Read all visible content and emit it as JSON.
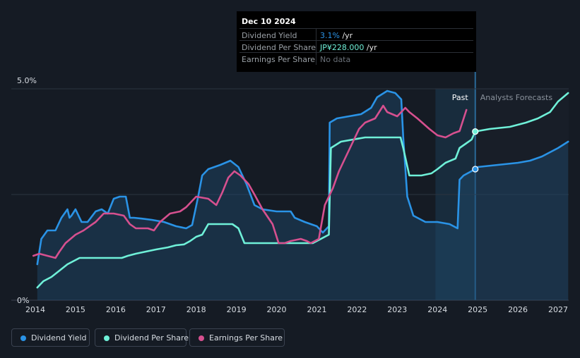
{
  "tooltip": {
    "date": "Dec 10 2024",
    "rows": [
      {
        "label": "Dividend Yield",
        "value": "3.1%",
        "unit": " /yr"
      },
      {
        "label": "Dividend Per Share",
        "value": "JP¥228.000",
        "unit": " /yr"
      },
      {
        "label": "Earnings Per Share",
        "value": "No data",
        "unit": ""
      }
    ]
  },
  "legend": [
    {
      "label": "Dividend Yield",
      "color": "#2a93e6"
    },
    {
      "label": "Dividend Per Share",
      "color": "#6ff0d8"
    },
    {
      "label": "Earnings Per Share",
      "color": "#d6508f"
    }
  ],
  "chart_data": {
    "type": "line",
    "x_ticks": [
      "2014",
      "2015",
      "2016",
      "2017",
      "2018",
      "2019",
      "2020",
      "2021",
      "2022",
      "2023",
      "2024",
      "2025",
      "2026",
      "2027"
    ],
    "y_ticks": [
      "0%",
      "5.0%"
    ],
    "ylim": [
      0,
      5.0
    ],
    "past_label": "Past",
    "forecast_label": "Analysts Forecasts",
    "highlight_date": 2024.94,
    "series": [
      {
        "name": "Dividend Yield",
        "color": "#2a93e6",
        "x": [
          2014.05,
          2014.15,
          2014.3,
          2014.5,
          2014.65,
          2014.8,
          2014.85,
          2014.9,
          2015.0,
          2015.1,
          2015.15,
          2015.3,
          2015.5,
          2015.65,
          2015.8,
          2015.95,
          2016.1,
          2016.25,
          2016.35,
          2016.45,
          2016.65,
          2016.9,
          2017.2,
          2017.5,
          2017.75,
          2017.9,
          2018.05,
          2018.15,
          2018.3,
          2018.6,
          2018.85,
          2019.05,
          2019.25,
          2019.45,
          2019.65,
          2020.0,
          2020.35,
          2020.45,
          2020.7,
          2021.0,
          2021.15,
          2021.3,
          2021.32,
          2021.5,
          2021.8,
          2022.1,
          2022.35,
          2022.5,
          2022.75,
          2022.95,
          2023.1,
          2023.15,
          2023.25,
          2023.4,
          2023.7,
          2024.0,
          2024.3,
          2024.5,
          2024.55,
          2024.65,
          2024.94,
          2025.0,
          2025.5,
          2026.0,
          2026.3,
          2026.6,
          2027.0,
          2027.25
        ],
        "y": [
          0.85,
          1.45,
          1.65,
          1.65,
          1.95,
          2.15,
          1.95,
          2.0,
          2.15,
          1.95,
          1.85,
          1.85,
          2.1,
          2.15,
          2.05,
          2.4,
          2.45,
          2.45,
          1.95,
          1.95,
          1.93,
          1.9,
          1.85,
          1.75,
          1.7,
          1.78,
          2.45,
          2.95,
          3.1,
          3.2,
          3.3,
          3.15,
          2.75,
          2.25,
          2.15,
          2.1,
          2.1,
          1.95,
          1.85,
          1.75,
          1.6,
          1.75,
          4.2,
          4.3,
          4.35,
          4.4,
          4.55,
          4.8,
          4.95,
          4.9,
          4.75,
          3.85,
          2.45,
          2.0,
          1.85,
          1.85,
          1.8,
          1.7,
          2.85,
          2.95,
          3.1,
          3.15,
          3.2,
          3.25,
          3.3,
          3.4,
          3.6,
          3.75
        ]
      },
      {
        "name": "Dividend Per Share",
        "color": "#6ff0d8",
        "x": [
          2014.05,
          2014.2,
          2014.4,
          2014.6,
          2014.8,
          2015.0,
          2015.1,
          2015.5,
          2016.0,
          2016.15,
          2016.3,
          2016.5,
          2016.75,
          2017.0,
          2017.3,
          2017.5,
          2017.7,
          2017.85,
          2018.0,
          2018.15,
          2018.3,
          2018.6,
          2018.9,
          2019.05,
          2019.2,
          2019.35,
          2020.0,
          2020.5,
          2020.9,
          2021.1,
          2021.2,
          2021.3,
          2021.35,
          2021.6,
          2021.9,
          2022.2,
          2022.6,
          2022.9,
          2023.0,
          2023.08,
          2023.15,
          2023.3,
          2023.6,
          2023.85,
          2024.0,
          2024.2,
          2024.45,
          2024.55,
          2024.7,
          2024.85,
          2024.94,
          2025.3,
          2025.8,
          2026.2,
          2026.5,
          2026.8,
          2027.0,
          2027.25
        ],
        "y": [
          0.3,
          0.45,
          0.55,
          0.7,
          0.85,
          0.95,
          1.0,
          1.0,
          1.0,
          1.0,
          1.05,
          1.1,
          1.15,
          1.2,
          1.25,
          1.3,
          1.32,
          1.4,
          1.5,
          1.55,
          1.8,
          1.8,
          1.8,
          1.7,
          1.35,
          1.35,
          1.35,
          1.35,
          1.35,
          1.45,
          1.5,
          1.55,
          3.6,
          3.75,
          3.8,
          3.85,
          3.85,
          3.85,
          3.85,
          3.85,
          3.6,
          2.95,
          2.95,
          3.0,
          3.1,
          3.25,
          3.35,
          3.6,
          3.7,
          3.8,
          3.99,
          4.05,
          4.1,
          4.2,
          4.3,
          4.45,
          4.7,
          4.9
        ]
      },
      {
        "name": "Earnings Per Share",
        "color": "#d6508f",
        "x": [
          2013.95,
          2014.1,
          2014.3,
          2014.5,
          2014.6,
          2014.75,
          2015.0,
          2015.2,
          2015.35,
          2015.5,
          2015.7,
          2015.95,
          2016.2,
          2016.35,
          2016.5,
          2016.8,
          2016.95,
          2017.1,
          2017.35,
          2017.6,
          2017.75,
          2017.9,
          2018.0,
          2018.3,
          2018.5,
          2018.65,
          2018.8,
          2018.95,
          2019.1,
          2019.3,
          2019.45,
          2019.65,
          2019.9,
          2020.05,
          2020.2,
          2020.35,
          2020.6,
          2020.75,
          2020.85,
          2021.05,
          2021.2,
          2021.4,
          2021.55,
          2021.7,
          2021.9,
          2022.05,
          2022.2,
          2022.45,
          2022.65,
          2022.75,
          2023.0,
          2023.2,
          2023.3,
          2023.5,
          2023.8,
          2024.0,
          2024.2,
          2024.4,
          2024.55,
          2024.72
        ],
        "y": [
          1.05,
          1.1,
          1.05,
          1.0,
          1.15,
          1.35,
          1.55,
          1.65,
          1.75,
          1.85,
          2.05,
          2.05,
          2.0,
          1.8,
          1.7,
          1.7,
          1.65,
          1.85,
          2.05,
          2.1,
          2.2,
          2.35,
          2.45,
          2.4,
          2.25,
          2.55,
          2.9,
          3.05,
          2.95,
          2.75,
          2.5,
          2.15,
          1.8,
          1.35,
          1.35,
          1.4,
          1.45,
          1.4,
          1.35,
          1.45,
          2.25,
          2.65,
          3.05,
          3.35,
          3.75,
          4.05,
          4.2,
          4.3,
          4.6,
          4.45,
          4.35,
          4.55,
          4.45,
          4.3,
          4.05,
          3.9,
          3.85,
          3.95,
          4.0,
          4.5
        ]
      }
    ]
  }
}
